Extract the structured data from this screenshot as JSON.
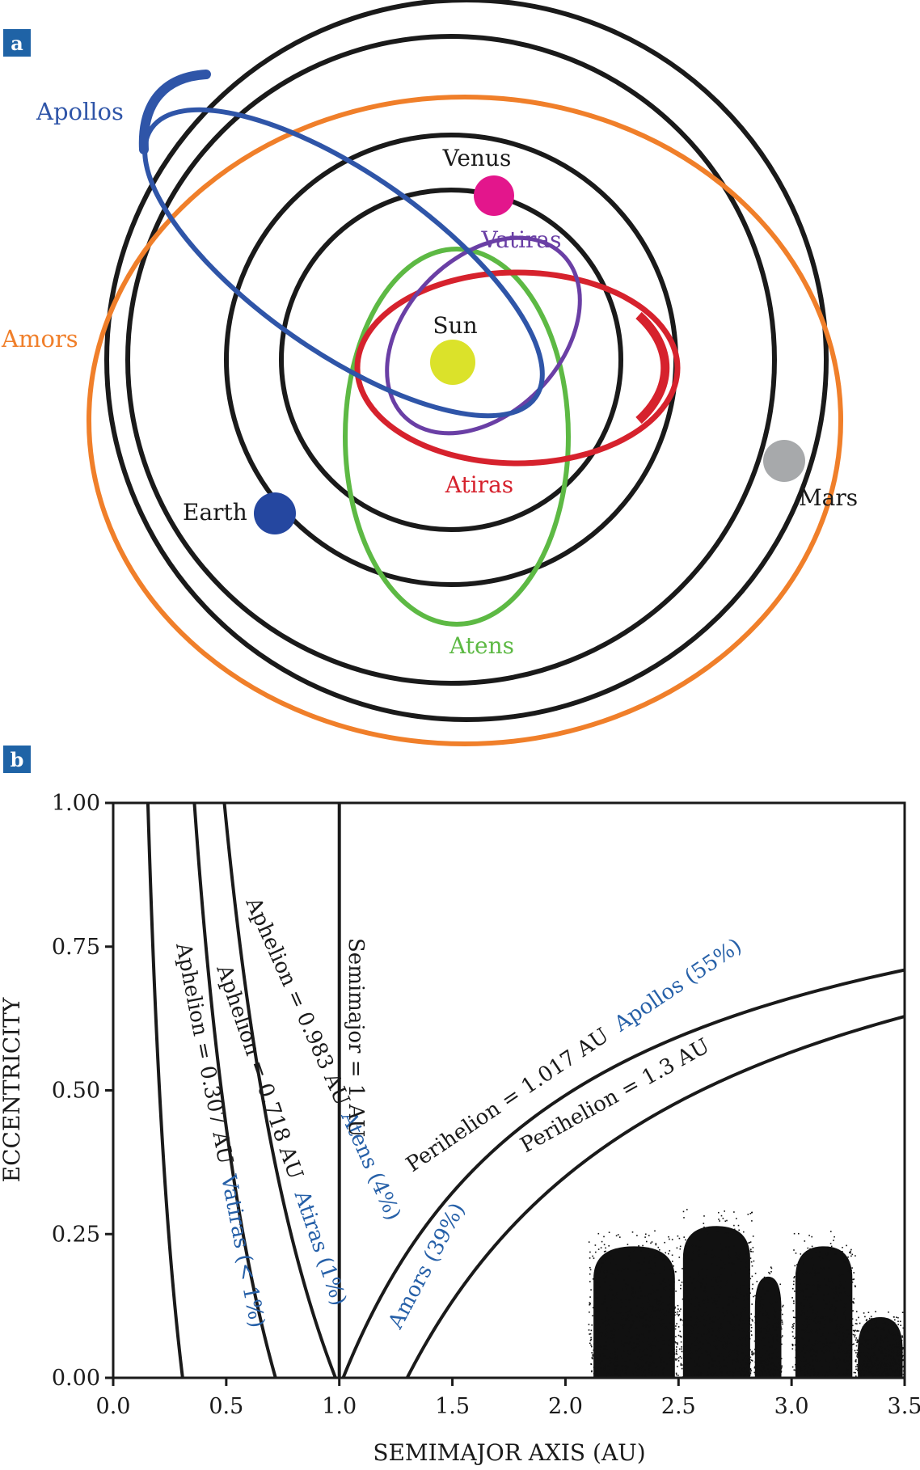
{
  "panel_a": {
    "tag": "a",
    "labels": {
      "apollos": "Apollos",
      "amors": "Amors",
      "venus": "Venus",
      "vatiras": "Vatiras",
      "sun": "Sun",
      "earth": "Earth",
      "mars": "Mars",
      "atiras": "Atiras",
      "atens": "Atens"
    },
    "colors": {
      "planet_orbit": "#1a1a1a",
      "apollos": "#2f55a8",
      "amors": "#f07f2a",
      "venus": "#e3168c",
      "vatiras": "#6a3fa5",
      "sun": "#dbe22a",
      "earth": "#2547a0",
      "mars": "#a7a9ab",
      "atiras": "#d6222d",
      "atens": "#5db944"
    }
  },
  "panel_b": {
    "tag": "b",
    "boundary_labels": {
      "aphelion_0307": "Aphelion = 0.307 AU",
      "aphelion_0718": "Aphelion = 0.718 AU",
      "aphelion_0983": "Aphelion = 0.983 AU",
      "semimajor_1": "Semimajor = 1 AU",
      "perihelion_1017": "Perihelion = 1.017 AU",
      "perihelion_13": "Perihelion = 1.3 AU"
    },
    "group_labels": {
      "vatiras": "Vatiras (< 1%)",
      "atiras": "Atiras (1%)",
      "atens": "Atens (4%)",
      "apollos": "Apollos (55%)",
      "amors": "Amors (39%)"
    },
    "label_color": "#2660a8"
  },
  "chart_data": {
    "type": "line",
    "xlabel": "SEMIMAJOR AXIS (AU)",
    "ylabel": "ECCENTRICITY",
    "xlim": [
      0.0,
      3.5
    ],
    "ylim": [
      0.0,
      1.0
    ],
    "x_ticks": [
      "0.0",
      "0.5",
      "1.0",
      "1.5",
      "2.0",
      "2.5",
      "3.0",
      "3.5"
    ],
    "y_ticks": [
      "0.00",
      "0.25",
      "0.50",
      "0.75",
      "1.00"
    ],
    "curves": [
      {
        "kind": "aphelion",
        "value": 0.307
      },
      {
        "kind": "aphelion",
        "value": 0.718
      },
      {
        "kind": "aphelion",
        "value": 0.983
      },
      {
        "kind": "semimajor",
        "value": 1.0
      },
      {
        "kind": "perihelion",
        "value": 1.017
      },
      {
        "kind": "perihelion",
        "value": 1.3
      }
    ],
    "scatter_clumps": [
      {
        "x": [
          2.1,
          2.5
        ],
        "e_max": 0.26
      },
      {
        "x": [
          2.5,
          2.83
        ],
        "e_max": 0.3
      },
      {
        "x": [
          2.83,
          2.96
        ],
        "e_max": 0.2
      },
      {
        "x": [
          3.0,
          3.28
        ],
        "e_max": 0.26
      },
      {
        "x": [
          3.28,
          3.5
        ],
        "e_max": 0.12
      }
    ]
  }
}
